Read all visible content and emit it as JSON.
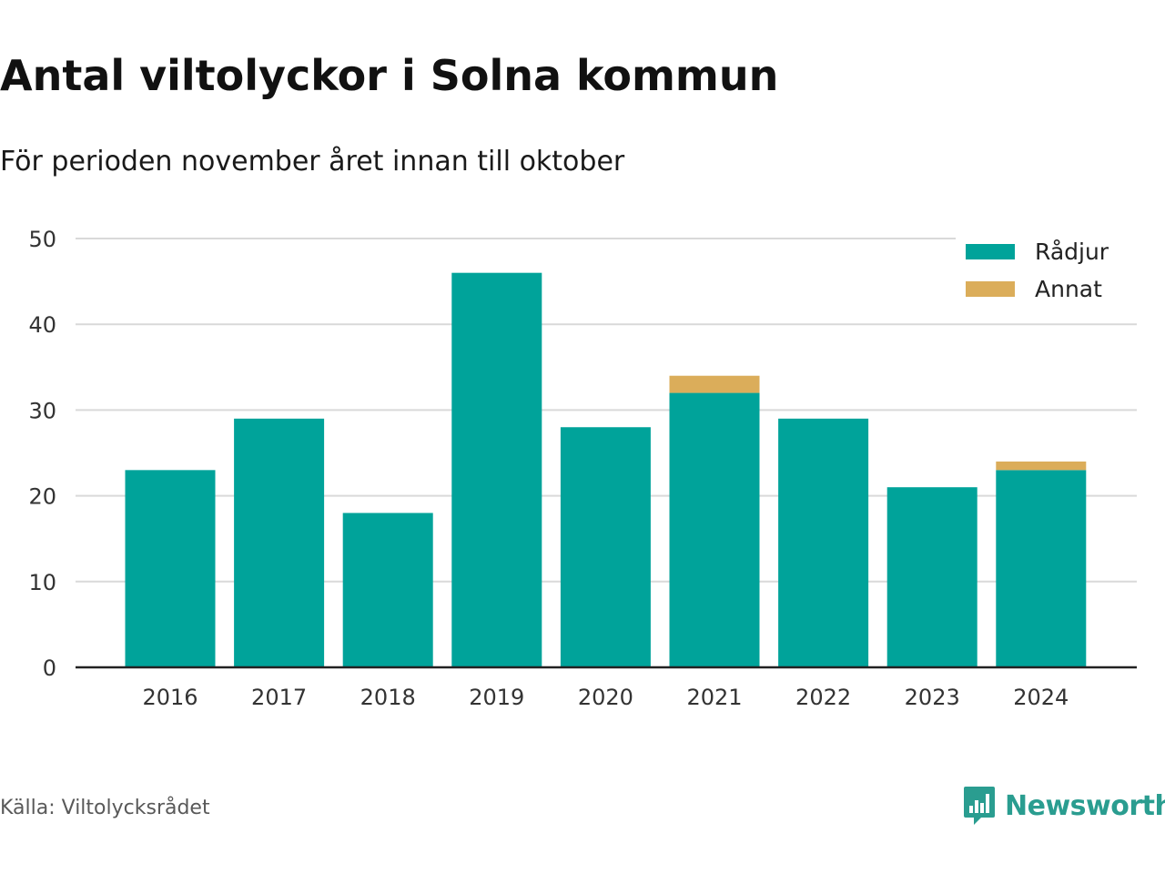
{
  "header": {
    "title": "Antal viltolyckor i Solna kommun",
    "subtitle": "För perioden november året innan till oktober"
  },
  "footer": {
    "source": "Källa: Viltolycksrådet",
    "brand": "Newsworthy",
    "brand_icon": "bar-chart-speech-bubble-icon"
  },
  "colors": {
    "radjur": "#00A39A",
    "annat": "#DBAD5A",
    "grid": "#D9D9D9",
    "axis": "#222222",
    "brand": "#2A9D90"
  },
  "chart_data": {
    "type": "bar",
    "stacked": true,
    "categories": [
      "2016",
      "2017",
      "2018",
      "2019",
      "2020",
      "2021",
      "2022",
      "2023",
      "2024"
    ],
    "series": [
      {
        "name": "Rådjur",
        "values": [
          23,
          29,
          18,
          46,
          28,
          32,
          29,
          21,
          23
        ]
      },
      {
        "name": "Annat",
        "values": [
          0,
          0,
          0,
          0,
          0,
          2,
          0,
          0,
          1
        ]
      }
    ],
    "yticks": [
      0,
      10,
      20,
      30,
      40,
      50
    ],
    "ylim": [
      0,
      50
    ],
    "grid": true,
    "legend_position": "top-right"
  }
}
